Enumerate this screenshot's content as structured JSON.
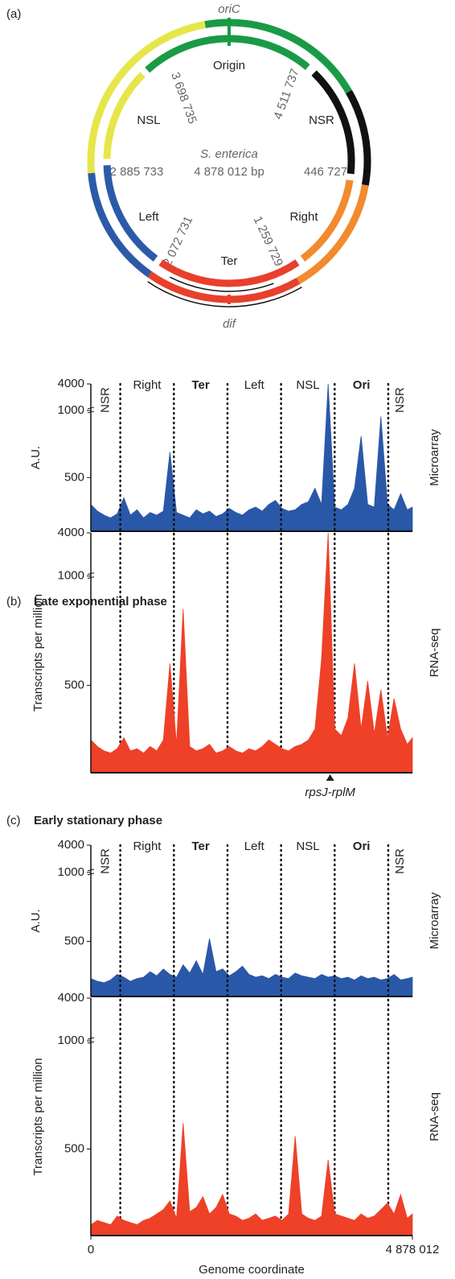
{
  "panel_a": {
    "label": "(a)",
    "oric": "oriC",
    "dif": "dif",
    "organism": "S. enterica",
    "genome_size": "4 878 012 bp",
    "regions": {
      "origin": "Origin",
      "nsr": "NSR",
      "nsl": "NSL",
      "left": "Left",
      "right": "Right",
      "ter": "Ter"
    },
    "coordinates": {
      "c1": "3 698 735",
      "c2": "4 511 737",
      "c3": "2 885 733",
      "c4": "446 727",
      "c5": "2 072 731",
      "c6": "1 259 729"
    }
  },
  "panels": {
    "b_label": "(b)",
    "b_title": "Late exponential phase",
    "c_label": "(c)",
    "c_title": "Early stationary phase"
  },
  "chart_data": [
    {
      "type": "area",
      "ylabel": "A.U.",
      "xlim": [
        0,
        4878012
      ],
      "ylim": [
        100,
        4000
      ],
      "yticks": [
        500,
        1000,
        4000
      ],
      "axis_break": true,
      "regions": [
        {
          "label": "NSR"
        },
        {
          "label": "Right"
        },
        {
          "label": "Ter",
          "bold": true
        },
        {
          "label": "Left"
        },
        {
          "label": "NSL"
        },
        {
          "label": "Ori",
          "bold": true
        },
        {
          "label": "NSR"
        }
      ],
      "boundaries": [
        446727,
        1259729,
        2072731,
        2885733,
        3698735,
        4511737
      ],
      "x": [
        0,
        100000,
        200000,
        300000,
        400000,
        500000,
        600000,
        700000,
        800000,
        900000,
        1000000,
        1100000,
        1200000,
        1300000,
        1400000,
        1500000,
        1600000,
        1700000,
        1800000,
        1900000,
        2000000,
        2100000,
        2200000,
        2300000,
        2400000,
        2500000,
        2600000,
        2700000,
        2800000,
        2900000,
        3000000,
        3100000,
        3200000,
        3300000,
        3400000,
        3500000,
        3600000,
        3700000,
        3800000,
        3900000,
        4000000,
        4100000,
        4200000,
        4300000,
        4400000,
        4500000,
        4600000,
        4700000,
        4800000,
        4878012
      ],
      "series": [
        {
          "name": "Microarray",
          "color": "#2a58a8",
          "values": [
            300,
            250,
            220,
            200,
            230,
            350,
            220,
            260,
            200,
            240,
            220,
            250,
            690,
            240,
            220,
            200,
            260,
            230,
            250,
            210,
            230,
            270,
            240,
            220,
            260,
            280,
            250,
            300,
            330,
            270,
            250,
            260,
            300,
            320,
            420,
            300,
            4000,
            280,
            260,
            300,
            420,
            810,
            300,
            280,
            955,
            300,
            260,
            380,
            260,
            280
          ]
        }
      ]
    },
    {
      "type": "area",
      "ylabel": "Transcripts per million",
      "xlim": [
        0,
        4878012
      ],
      "ylim": [
        100,
        4000
      ],
      "yticks": [
        500,
        1000,
        4000
      ],
      "axis_break": true,
      "annotation": {
        "text": "rpsJ-rplM",
        "x": 3630000
      },
      "x": [
        0,
        100000,
        200000,
        300000,
        400000,
        500000,
        600000,
        700000,
        800000,
        900000,
        1000000,
        1100000,
        1200000,
        1300000,
        1400000,
        1500000,
        1600000,
        1700000,
        1800000,
        1900000,
        2000000,
        2100000,
        2200000,
        2300000,
        2400000,
        2500000,
        2600000,
        2700000,
        2800000,
        2900000,
        3000000,
        3100000,
        3200000,
        3300000,
        3400000,
        3500000,
        3600000,
        3700000,
        3800000,
        3900000,
        4000000,
        4100000,
        4200000,
        4300000,
        4400000,
        4500000,
        4600000,
        4700000,
        4800000,
        4878012
      ],
      "series": [
        {
          "name": "RNA-seq",
          "color": "#ee4128",
          "values": [
            250,
            220,
            200,
            190,
            210,
            260,
            200,
            210,
            190,
            220,
            200,
            250,
            600,
            230,
            850,
            220,
            200,
            210,
            230,
            190,
            200,
            220,
            200,
            190,
            210,
            200,
            220,
            250,
            230,
            210,
            200,
            220,
            230,
            250,
            300,
            620,
            4000,
            300,
            270,
            350,
            600,
            300,
            520,
            280,
            480,
            260,
            440,
            300,
            230,
            260
          ]
        }
      ]
    },
    {
      "type": "area",
      "ylabel": "A.U.",
      "xlim": [
        0,
        4878012
      ],
      "ylim": [
        100,
        4000
      ],
      "yticks": [
        500,
        1000,
        4000
      ],
      "axis_break": true,
      "regions": [
        {
          "label": "NSR"
        },
        {
          "label": "Right"
        },
        {
          "label": "Ter",
          "bold": true
        },
        {
          "label": "Left"
        },
        {
          "label": "NSL"
        },
        {
          "label": "Ori",
          "bold": true
        },
        {
          "label": "NSR"
        }
      ],
      "boundaries": [
        446727,
        1259729,
        2072731,
        2885733,
        3698735,
        4511737
      ],
      "x": [
        0,
        100000,
        200000,
        300000,
        400000,
        500000,
        600000,
        700000,
        800000,
        900000,
        1000000,
        1100000,
        1200000,
        1300000,
        1400000,
        1500000,
        1600000,
        1700000,
        1800000,
        1900000,
        2000000,
        2100000,
        2200000,
        2300000,
        2400000,
        2500000,
        2600000,
        2700000,
        2800000,
        2900000,
        3000000,
        3100000,
        3200000,
        3300000,
        3400000,
        3500000,
        3600000,
        3700000,
        3800000,
        3900000,
        4000000,
        4100000,
        4200000,
        4300000,
        4400000,
        4500000,
        4600000,
        4700000,
        4800000,
        4878012
      ],
      "series": [
        {
          "name": "Microarray",
          "color": "#2a58a8",
          "values": [
            230,
            210,
            200,
            220,
            260,
            240,
            210,
            230,
            240,
            280,
            250,
            300,
            260,
            240,
            330,
            270,
            360,
            260,
            520,
            280,
            300,
            250,
            280,
            320,
            260,
            240,
            250,
            230,
            260,
            240,
            230,
            270,
            250,
            240,
            230,
            260,
            240,
            250,
            230,
            240,
            220,
            250,
            230,
            240,
            220,
            230,
            260,
            220,
            230,
            240
          ]
        }
      ]
    },
    {
      "type": "area",
      "ylabel": "Transcripts per million",
      "xlabel": "Genome coordinate",
      "xlim": [
        0,
        4878012
      ],
      "ylim": [
        100,
        4000
      ],
      "yticks": [
        500,
        1000,
        4000
      ],
      "axis_break": true,
      "xticks": [
        0,
        {
          "value": 4878012,
          "label": "4 878 012"
        }
      ],
      "x": [
        0,
        100000,
        200000,
        300000,
        400000,
        500000,
        600000,
        700000,
        800000,
        900000,
        1000000,
        1100000,
        1200000,
        1300000,
        1400000,
        1500000,
        1600000,
        1700000,
        1800000,
        1900000,
        2000000,
        2100000,
        2200000,
        2300000,
        2400000,
        2500000,
        2600000,
        2700000,
        2800000,
        2900000,
        3000000,
        3100000,
        3200000,
        3300000,
        3400000,
        3500000,
        3600000,
        3700000,
        3800000,
        3900000,
        4000000,
        4100000,
        4200000,
        4300000,
        4400000,
        4500000,
        4600000,
        4700000,
        4800000,
        4878012
      ],
      "series": [
        {
          "name": "RNA-seq",
          "color": "#ee4128",
          "values": [
            150,
            170,
            160,
            150,
            190,
            170,
            160,
            150,
            170,
            180,
            200,
            220,
            260,
            180,
            620,
            210,
            230,
            280,
            200,
            230,
            290,
            200,
            190,
            170,
            180,
            200,
            170,
            180,
            190,
            170,
            200,
            560,
            200,
            180,
            170,
            190,
            450,
            200,
            190,
            180,
            170,
            200,
            180,
            190,
            220,
            250,
            200,
            290,
            180,
            200
          ]
        }
      ]
    }
  ]
}
